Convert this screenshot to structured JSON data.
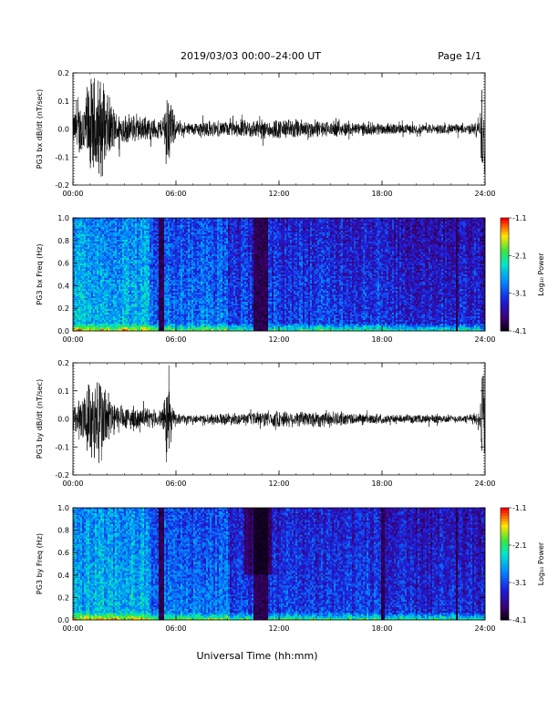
{
  "header": {
    "title": "2019/03/03  00:00–24:00 UT",
    "page": "Page 1/1"
  },
  "xaxis_label": "Universal Time (hh:mm)",
  "colorbar": {
    "label": "Log₁₀ Power",
    "ticks": [
      "-1.1",
      "-2.1",
      "-3.1",
      "-4.1"
    ]
  },
  "chart_data": [
    {
      "type": "line",
      "ylabel": "PG3 bx dB/dt (nT/sec)",
      "xlim": [
        0,
        24
      ],
      "ylim": [
        -0.2,
        0.2
      ],
      "x_ticks": [
        "00:00",
        "06:00",
        "12:00",
        "18:00",
        "24:00"
      ],
      "y_ticks": [
        "0.2",
        "0.1",
        "0.0",
        "-0.1",
        "-0.2"
      ],
      "envelope": {
        "hour": [
          0,
          0.5,
          1,
          1.5,
          2,
          2.5,
          3,
          4,
          5,
          5.2,
          5.5,
          6,
          7,
          7.8,
          8,
          9,
          10,
          11,
          12,
          13,
          14,
          15,
          16,
          17,
          18,
          19,
          20,
          21,
          22,
          23,
          23.7,
          23.8,
          24
        ],
        "amplitude": [
          0.06,
          0.12,
          0.2,
          0.22,
          0.14,
          0.07,
          0.06,
          0.05,
          0.04,
          0.04,
          0.18,
          0.03,
          0.025,
          0.04,
          0.03,
          0.03,
          0.035,
          0.04,
          0.04,
          0.04,
          0.035,
          0.03,
          0.03,
          0.025,
          0.025,
          0.02,
          0.02,
          0.02,
          0.02,
          0.02,
          0.03,
          0.22,
          0.22
        ]
      }
    },
    {
      "type": "heatmap",
      "ylabel": "PG3 bx Freq (Hz)",
      "xlim": [
        0,
        24
      ],
      "ylim": [
        0,
        1.0
      ],
      "x_ticks": [
        "00:00",
        "06:00",
        "12:00",
        "18:00",
        "24:00"
      ],
      "y_ticks": [
        "1.0",
        "0.8",
        "0.6",
        "0.4",
        "0.2",
        "0.0"
      ],
      "colorbar_range": [
        -4.1,
        -1.1
      ],
      "dark_bands_hours": [
        [
          5.0,
          5.3
        ],
        [
          10.5,
          11.4
        ],
        [
          22.3,
          22.4
        ]
      ]
    },
    {
      "type": "line",
      "ylabel": "PG3 by dB/dt (nT/sec)",
      "xlim": [
        0,
        24
      ],
      "ylim": [
        -0.2,
        0.2
      ],
      "x_ticks": [
        "00:00",
        "06:00",
        "12:00",
        "18:00",
        "24:00"
      ],
      "y_ticks": [
        "0.2",
        "0.1",
        "0.0",
        "-0.1",
        "-0.2"
      ],
      "envelope": {
        "hour": [
          0,
          0.5,
          1,
          1.5,
          2,
          2.5,
          3,
          4,
          5,
          5.2,
          5.5,
          6,
          7,
          8,
          9,
          10,
          11,
          12,
          13,
          14,
          15,
          16,
          17,
          18,
          19,
          20,
          21,
          22,
          23,
          23.7,
          23.8,
          24
        ],
        "amplitude": [
          0.05,
          0.1,
          0.16,
          0.2,
          0.12,
          0.06,
          0.05,
          0.04,
          0.035,
          0.035,
          0.15,
          0.02,
          0.015,
          0.02,
          0.025,
          0.02,
          0.03,
          0.035,
          0.03,
          0.035,
          0.03,
          0.025,
          0.02,
          0.02,
          0.015,
          0.015,
          0.02,
          0.015,
          0.015,
          0.03,
          0.2,
          0.2
        ]
      }
    },
    {
      "type": "heatmap",
      "ylabel": "PG3 by Freq (Hz)",
      "xlim": [
        0,
        24
      ],
      "ylim": [
        0,
        1.0
      ],
      "x_ticks": [
        "00:00",
        "06:00",
        "12:00",
        "18:00",
        "24:00"
      ],
      "y_ticks": [
        "1.0",
        "0.8",
        "0.6",
        "0.4",
        "0.2",
        "0.0"
      ],
      "colorbar_range": [
        -4.1,
        -1.1
      ],
      "dark_bands_hours": [
        [
          5.0,
          5.3
        ],
        [
          10.5,
          11.4
        ],
        [
          18.0,
          18.2
        ],
        [
          22.3,
          22.4
        ]
      ]
    }
  ]
}
